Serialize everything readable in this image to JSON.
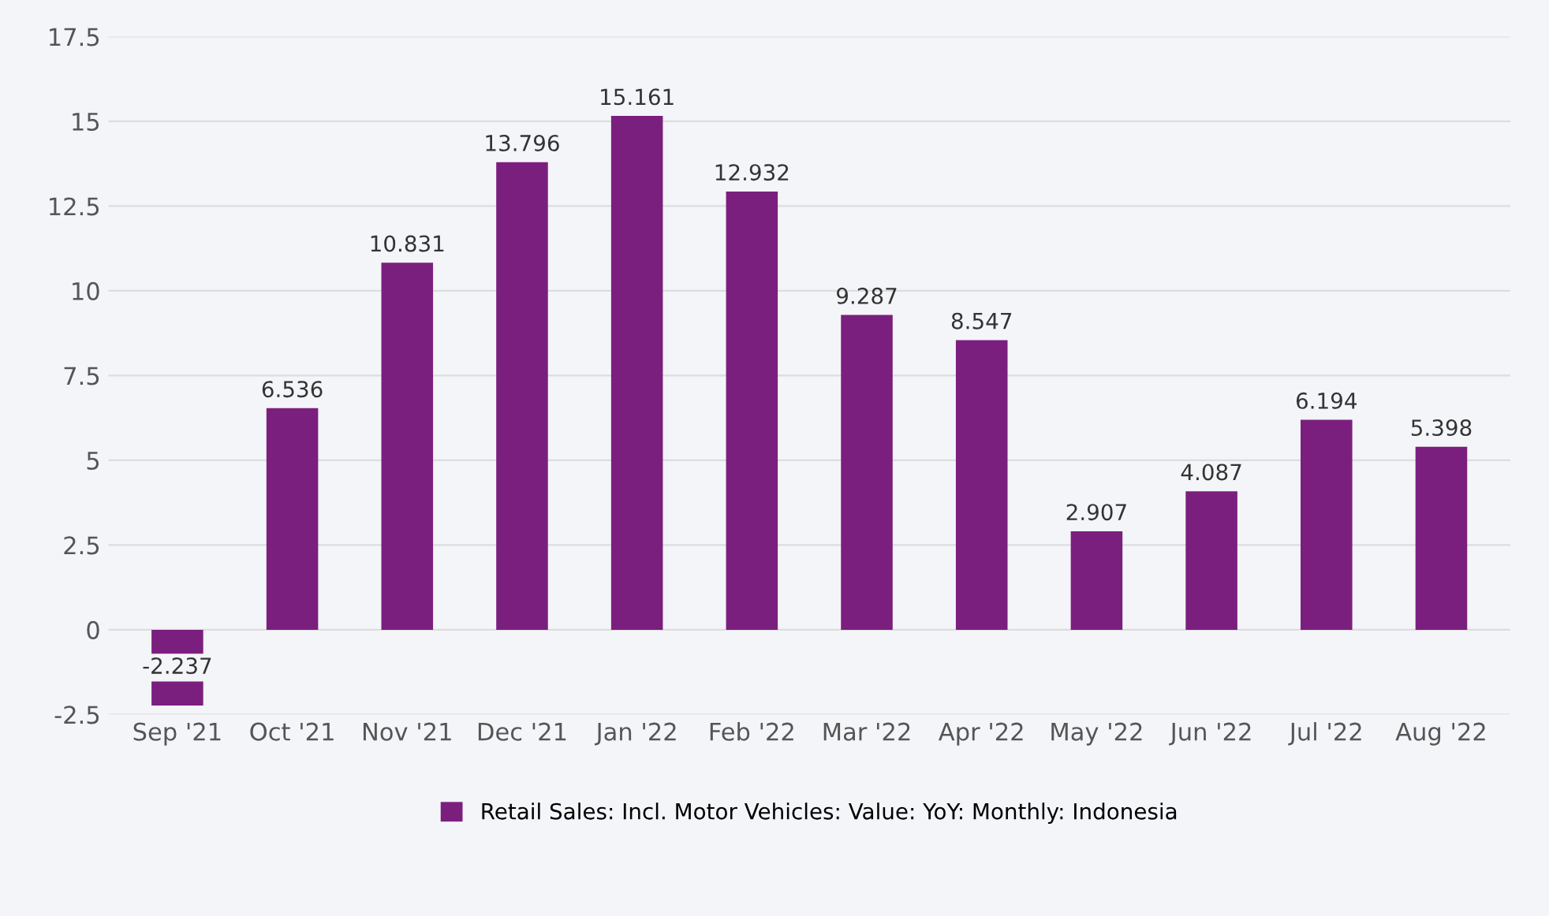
{
  "chart_data": {
    "type": "bar",
    "categories": [
      "Sep '21",
      "Oct '21",
      "Nov '21",
      "Dec '21",
      "Jan '22",
      "Feb '22",
      "Mar '22",
      "Apr '22",
      "May '22",
      "Jun '22",
      "Jul '22",
      "Aug '22"
    ],
    "series": [
      {
        "name": "Retail Sales: Incl. Motor Vehicles: Value: YoY: Monthly: Indonesia",
        "color": "#7b1f7e",
        "values": [
          -2.237,
          6.536,
          10.831,
          13.796,
          15.161,
          12.932,
          9.287,
          8.547,
          2.907,
          4.087,
          6.194,
          5.398
        ]
      }
    ],
    "ylim": [
      -2.5,
      17.5
    ],
    "yticks": [
      -2.5,
      0,
      2.5,
      5,
      7.5,
      10,
      12.5,
      15,
      17.5
    ],
    "grid": "y",
    "legend": "bottom",
    "data_labels": true
  }
}
